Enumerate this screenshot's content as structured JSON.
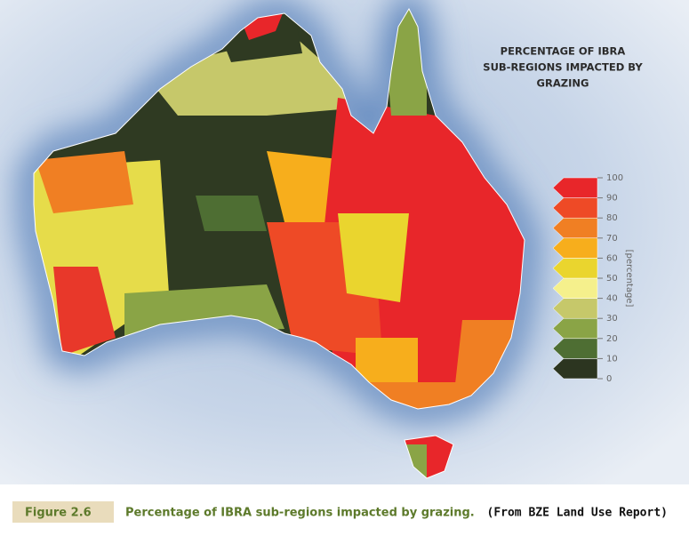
{
  "title": [
    "PERCENTAGE OF IBRA",
    "SUB-REGIONS IMPACTED BY",
    "GRAZING"
  ],
  "legend": {
    "label": "[percentage]",
    "ticks": [
      0,
      10,
      20,
      30,
      40,
      50,
      60,
      70,
      80,
      90,
      100
    ],
    "colors": [
      "#2c3520",
      "#4e6e33",
      "#8aa446",
      "#c6c86a",
      "#f5f08c",
      "#ead52e",
      "#f7ae1c",
      "#f07f23",
      "#ee4a26",
      "#e8262a"
    ]
  },
  "caption": {
    "figure": "Figure 2.6",
    "text": "Percentage of IBRA sub-regions impacted by grazing.",
    "source": "(From BZE Land Use Report)"
  }
}
